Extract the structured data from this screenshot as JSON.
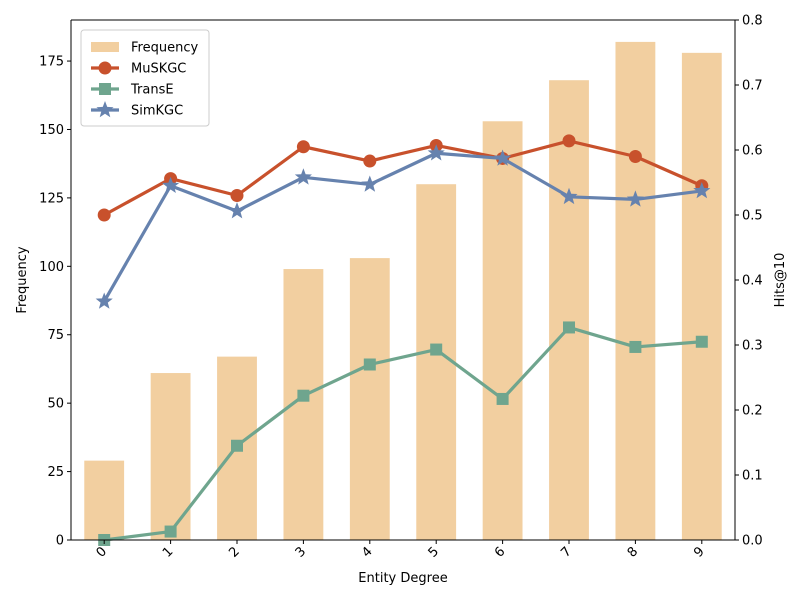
{
  "chart_data": {
    "type": "bar",
    "categories": [
      "0",
      "1",
      "2",
      "3",
      "4",
      "5",
      "6",
      "7",
      "8",
      "9"
    ],
    "xlabel": "Entity Degree",
    "ylabel": "Frequency",
    "y2label": "Hits@10",
    "ylim": [
      0,
      190
    ],
    "y2lim": [
      0,
      0.8
    ],
    "yticks": [
      "0",
      "25",
      "50",
      "75",
      "100",
      "125",
      "150",
      "175"
    ],
    "y2ticks": [
      "0.0",
      "0.1",
      "0.2",
      "0.3",
      "0.4",
      "0.5",
      "0.6",
      "0.7",
      "0.8"
    ],
    "legend_position": "upper-left",
    "grid": false,
    "bars": {
      "name": "Frequency",
      "color": "#F2CFA0",
      "values": [
        29,
        61,
        67,
        99,
        103,
        130,
        153,
        168,
        182,
        178
      ]
    },
    "series": [
      {
        "name": "MuSKGC",
        "color": "#C8512C",
        "marker": "circle",
        "values": [
          0.5,
          0.556,
          0.53,
          0.605,
          0.583,
          0.607,
          0.587,
          0.614,
          0.59,
          0.545
        ]
      },
      {
        "name": "TransE",
        "color": "#6FA58E",
        "marker": "square",
        "values": [
          0.0,
          0.013,
          0.145,
          0.222,
          0.27,
          0.293,
          0.217,
          0.327,
          0.297,
          0.305
        ]
      },
      {
        "name": "SimKGC",
        "color": "#6682AE",
        "marker": "star",
        "values": [
          0.367,
          0.545,
          0.506,
          0.558,
          0.547,
          0.595,
          0.587,
          0.528,
          0.524,
          0.537
        ]
      }
    ]
  }
}
